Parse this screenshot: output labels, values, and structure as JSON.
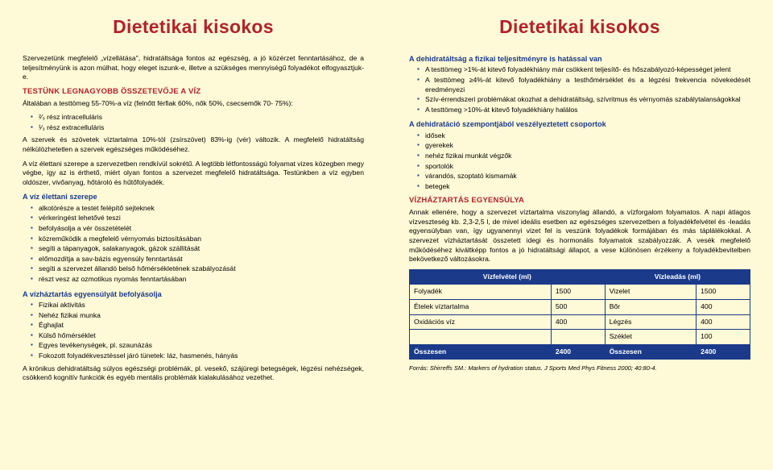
{
  "title": "Dietetikai kisokos",
  "left": {
    "intro": "Szervezetünk megfelelő „vízellátása\", hidratáltsága fontos az egészség, a jó közérzet fenntartásához, de a teljesítményünk is azon múlhat, hogy eleget iszunk-e, illetve a szükséges mennyiségű folyadékot elfogyasztjuk-e.",
    "s1_title": "TESTÜNK LEGNAGYOBB ÖSSZETEVŐJE A VÍZ",
    "s1_p1": "Általában a testtömeg 55-70%-a víz (felnőtt férfiak 60%, nők 50%, csecsemők 70- 75%):",
    "s1_items": [
      "²⁄₃ rész intracelluláris",
      "¹⁄₃ rész extracelluláris"
    ],
    "s1_p2": "A szervek és szövetek víztartalma 10%-tól (zsírszövet) 83%-ig (vér) változik. A megfelelő hidratáltság nélkülözhetetlen a szervek egészséges működéséhez.",
    "s1_p3": "A víz élettani szerepe a szervezetben rendkívül sokrétű. A legtöbb létfontosságú folyamat vizes közegben megy végbe, így az is érthető, miért olyan fontos a szervezet megfelelő hidratáltsága. Testünkben a víz egyben oldószer, vivőanyag, hőtároló és hűtőfolyadék.",
    "s2_title": "A víz élettani szerepe",
    "s2_items": [
      "alkotórésze a testet felépítő sejteknek",
      "vérkeringést lehetővé teszi",
      "befolyásolja a vér összetételét",
      "közreműködik a megfelelő vérnyomás biztosításában",
      "segíti a tápanyagok, salakanyagok, gázok szállítását",
      "előmozdítja a sav-bázis egyensúly fenntartását",
      "segíti a szervezet állandó belső hőmérsékletének szabályozását",
      "részt vesz az ozmotikus nyomás fenntartásában"
    ],
    "s3_title": "A vízháztartás egyensúlyát befolyásolja",
    "s3_items": [
      "Fizikai aktivitás",
      "Nehéz fizikai munka",
      "Éghajlat",
      "Külső hőmérséklet",
      "Egyes tevékenységek, pl. szaunázás",
      "Fokozott folyadékvesztéssel járó tünetek: láz, hasmenés, hányás"
    ],
    "s3_p": "A krónikus dehidratáltság súlyos egészségi problémák, pl. vesekő, szájüregi betegségek, légzési nehézségek, csökkenő kognitív funkciók és egyéb mentális problémák kialakulásához vezethet."
  },
  "right": {
    "s1_title": "A dehidratáltság a fizikai teljesítményre is hatással van",
    "s1_items": [
      "A testtömeg >1%-át kitevő folyadékhiány már csökkent teljesítő- és hőszabályozó-képességet jelent",
      "A testtömeg ≥4%-át kitevő folyadékhiány a testhőmérséklet és a légzési frekvencia növekedését eredményezi",
      "Szív-érrendszeri problémákat okozhat a dehidratáltság, szívritmus és vérnyomás szabálytalanságokkal",
      "A testtömeg >10%-át kitevő folyadékhiány halálos"
    ],
    "s2_title": "A dehidratáció szempontjából veszélyeztetett csoportok",
    "s2_items": [
      "idősek",
      "gyerekek",
      "nehéz fizikai munkát végzők",
      "sportolók",
      "várandós, szoptató kismamák",
      "betegek"
    ],
    "s3_title": "VÍZHÁZTARTÁS EGYENSÚLYA",
    "s3_p": "Annak ellenére, hogy a szervezet víztartalma viszonylag állandó, a vízforgalom folyamatos. A napi átlagos vízveszteség kb. 2,3-2,5 l, de mivel ideális esetben az egészséges szervezetben a folyadékfelvétel és -leadás egyensúlyban van, így ugyanennyi vizet fel is veszünk folyadékok formájában és más táplálékokkal. A szervezet vízháztartását összetett idegi és hormonális folyamatok szabályozzák. A vesék megfelelő működéséhez kiváltképp fontos a jó hidratáltsági állapot, a vese különösen érzékeny a folyadékbevitelben bekövetkező változásokra.",
    "table": {
      "h1": "Vízfelvétel (ml)",
      "h2": "Vízleadás (ml)",
      "rows": [
        [
          "Folyadék",
          "1500",
          "Vizelet",
          "1500"
        ],
        [
          "Ételek víztartalma",
          "500",
          "Bőr",
          "400"
        ],
        [
          "Oxidációs víz",
          "400",
          "Légzés",
          "400"
        ],
        [
          "",
          "",
          "Széklet",
          "100"
        ]
      ],
      "total": [
        "Összesen",
        "2400",
        "Összesen",
        "2400"
      ]
    },
    "source": "Forrás: Shirreffs SM.: Markers of hydration status. J Sports Med Phys Fitness 2000; 40:80-4."
  }
}
